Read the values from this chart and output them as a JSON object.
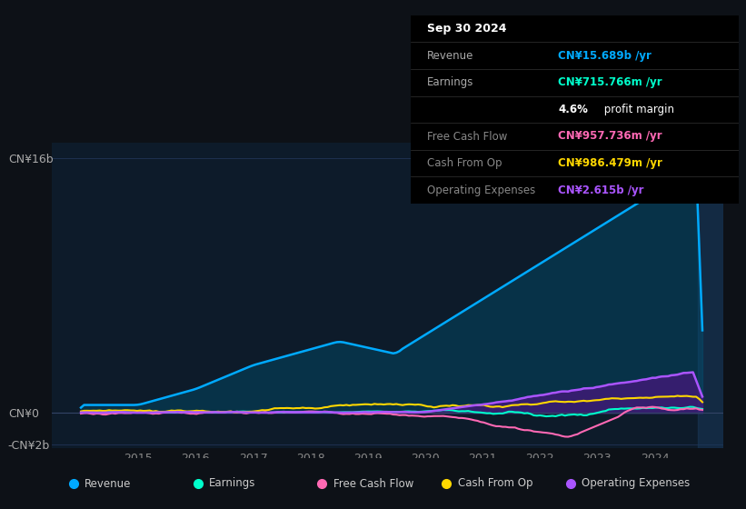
{
  "bg_color": "#0d1117",
  "plot_bg_color": "#0d1b2a",
  "title": "Sep 30 2024",
  "info_box": {
    "title": "Sep 30 2024",
    "rows": [
      {
        "label": "Revenue",
        "value": "CN¥15.689b /yr",
        "value_color": "#00aaff"
      },
      {
        "label": "Earnings",
        "value": "CN¥715.766m /yr",
        "value_color": "#00ffcc"
      },
      {
        "label": "",
        "value": "4.6% profit margin",
        "value_color": "#ffffff",
        "bold_part": "4.6%"
      },
      {
        "label": "Free Cash Flow",
        "value": "CN¥957.736m /yr",
        "value_color": "#ff69b4"
      },
      {
        "label": "Cash From Op",
        "value": "CN¥986.479m /yr",
        "value_color": "#ffd700"
      },
      {
        "label": "Operating Expenses",
        "value": "CN¥2.615b /yr",
        "value_color": "#aa55ff"
      }
    ]
  },
  "ylim": [
    -2200000000.0,
    17000000000.0
  ],
  "xlim": [
    2013.5,
    2025.2
  ],
  "yticks_labels": [
    "CN¥16b",
    "CN¥0",
    "-CN¥2b"
  ],
  "yticks_values": [
    16000000000.0,
    0,
    -2000000000.0
  ],
  "xticks": [
    2015,
    2016,
    2017,
    2018,
    2019,
    2020,
    2021,
    2022,
    2023,
    2024
  ],
  "grid_color": "#1e3050",
  "line_colors": {
    "revenue": "#00aaff",
    "earnings": "#00ffcc",
    "free_cash_flow": "#ff69b4",
    "cash_from_op": "#ffd700",
    "operating_expenses": "#aa55ff"
  },
  "fill_colors": {
    "revenue": "#005577",
    "operating_expenses": "#551188"
  },
  "legend": [
    {
      "label": "Revenue",
      "color": "#00aaff"
    },
    {
      "label": "Earnings",
      "color": "#00ffcc"
    },
    {
      "label": "Free Cash Flow",
      "color": "#ff69b4"
    },
    {
      "label": "Cash From Op",
      "color": "#ffd700"
    },
    {
      "label": "Operating Expenses",
      "color": "#aa55ff"
    }
  ],
  "highlight_x": 2024.75,
  "highlight_color": "#1a3a5c"
}
